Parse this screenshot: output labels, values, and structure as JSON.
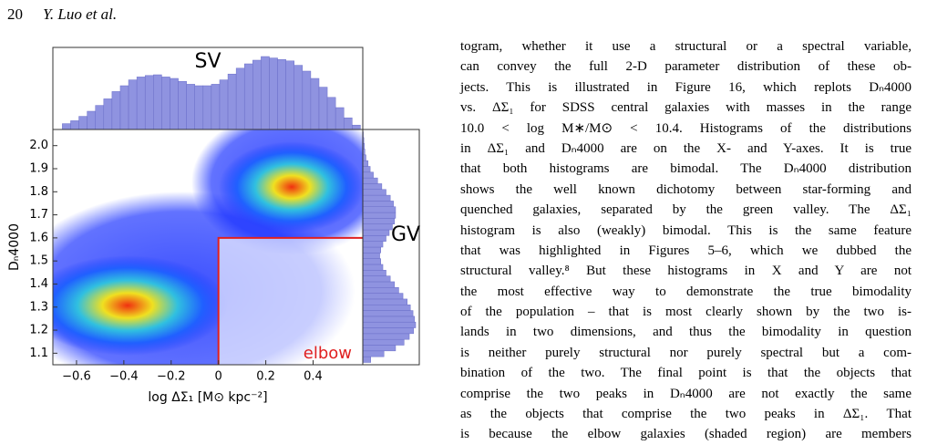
{
  "header": {
    "page_number": "20",
    "authors": "Y. Luo et al."
  },
  "figure": {
    "top_label": "SV",
    "right_label": "GV",
    "region_label": "elbow",
    "x_label": "log ΔΣ₁ [M⊙ kpc⁻²]",
    "y_label": "Dₙ4000",
    "xlim": [
      -0.7,
      0.61
    ],
    "ylim": [
      1.05,
      2.07
    ],
    "xticks": [
      {
        "value": -0.6,
        "label": "−0.6"
      },
      {
        "value": -0.4,
        "label": "−0.4"
      },
      {
        "value": -0.2,
        "label": "−0.2"
      },
      0,
      0.2,
      0.4
    ],
    "yticks": [
      1.1,
      1.2,
      1.3,
      1.4,
      1.5,
      1.6,
      1.7,
      1.8,
      1.9,
      {
        "value": 2,
        "label": "2.0"
      }
    ],
    "elbow_region": {
      "x": 0,
      "y": 1.6,
      "color": "#e02020"
    },
    "hist_color": "#8f93e0",
    "top_histogram": {
      "bins": [
        -0.66,
        -0.625,
        -0.59,
        -0.555,
        -0.52,
        -0.485,
        -0.45,
        -0.415,
        -0.38,
        -0.345,
        -0.31,
        -0.275,
        -0.24,
        -0.205,
        -0.17,
        -0.135,
        -0.1,
        -0.065,
        -0.03,
        0.005,
        0.04,
        0.075,
        0.11,
        0.145,
        0.18,
        0.215,
        0.25,
        0.285,
        0.32,
        0.355,
        0.39,
        0.425,
        0.46,
        0.495,
        0.53,
        0.565,
        0.6
      ],
      "values": [
        8,
        12,
        18,
        25,
        33,
        42,
        52,
        60,
        68,
        72,
        74,
        75,
        72,
        70,
        66,
        62,
        60,
        60,
        62,
        68,
        76,
        84,
        90,
        95,
        100,
        98,
        96,
        94,
        88,
        80,
        70,
        58,
        44,
        30,
        16,
        6
      ]
    },
    "right_histogram": {
      "bins": [
        1.06,
        1.085,
        1.11,
        1.135,
        1.16,
        1.185,
        1.21,
        1.235,
        1.26,
        1.285,
        1.31,
        1.335,
        1.36,
        1.385,
        1.41,
        1.435,
        1.46,
        1.485,
        1.51,
        1.535,
        1.56,
        1.585,
        1.61,
        1.635,
        1.66,
        1.685,
        1.71,
        1.735,
        1.76,
        1.785,
        1.81,
        1.835,
        1.86,
        1.885,
        1.91,
        1.935,
        1.96,
        1.985,
        2.01,
        2.035,
        2.06
      ],
      "values": [
        15,
        40,
        62,
        78,
        88,
        96,
        100,
        98,
        95,
        90,
        84,
        76,
        68,
        60,
        52,
        44,
        38,
        34,
        32,
        34,
        38,
        44,
        50,
        56,
        60,
        62,
        62,
        58,
        52,
        44,
        36,
        28,
        20,
        14,
        10,
        6,
        4,
        3,
        2,
        1
      ]
    }
  },
  "text_lines": [
    "togram, whether it use a structural or a spectral variable,",
    "can convey the full 2-D parameter distribution of these ob-",
    "jects. This is illustrated in Figure 16, which replots Dₙ4000",
    "vs. ΔΣ₁ for SDSS central galaxies with masses in the range",
    "10.0 < log M∗/M⊙ < 10.4. Histograms of the distributions",
    "in ΔΣ₁ and Dₙ4000 are on the X- and Y-axes. It is true",
    "that both histograms are bimodal. The Dₙ4000 distribution",
    "shows the well known dichotomy between star-forming and",
    "quenched galaxies, separated by the green valley. The ΔΣ₁",
    "histogram is also (weakly) bimodal. This is the same feature",
    "that was highlighted in Figures 5–6, which we dubbed the",
    "structural valley.⁸ But these histograms in X and Y are not",
    "the most effective way to demonstrate the true bimodality",
    "of the population – that is most clearly shown by the two is-",
    "lands in two dimensions, and thus the bimodality in question",
    "is neither purely structural nor purely spectral but a com-",
    "bination of the two. The final point is that the objects that",
    "comprise the two peaks in Dₙ4000 are not exactly the same",
    "as the objects that comprise the two peaks in ΔΣ₁. That",
    "is because the elbow galaxies (shaded region) are members"
  ]
}
